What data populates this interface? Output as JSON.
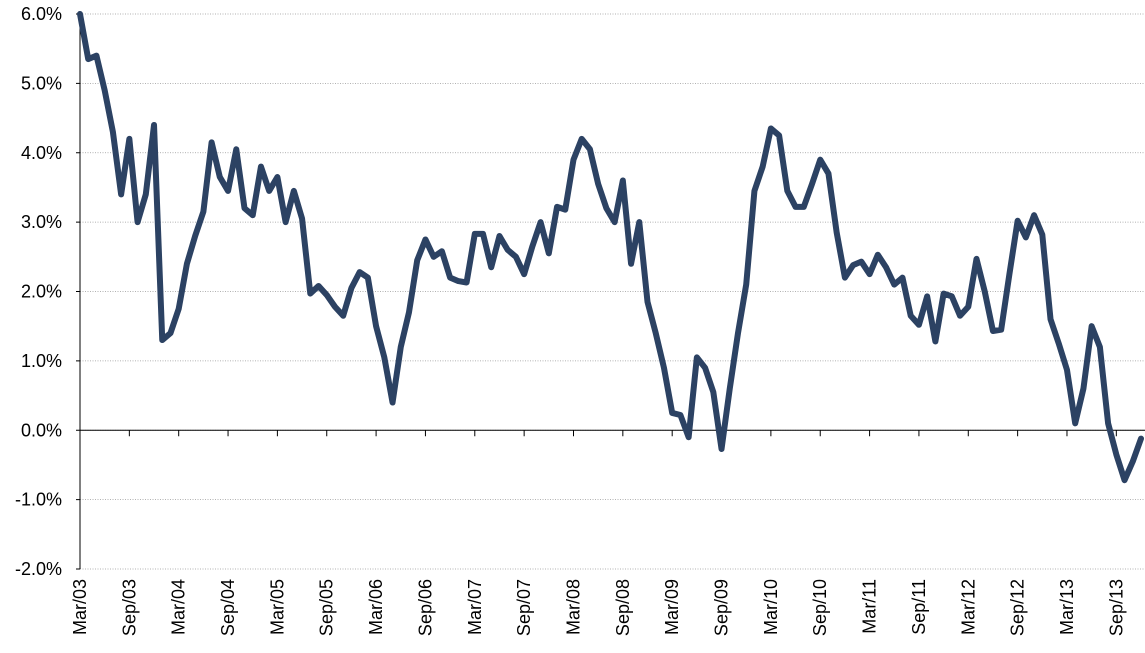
{
  "chart_data": {
    "type": "line",
    "categories": [
      "Mar/03",
      null,
      null,
      null,
      null,
      null,
      "Sep/03",
      null,
      null,
      null,
      null,
      null,
      "Mar/04",
      null,
      null,
      null,
      null,
      null,
      "Sep/04",
      null,
      null,
      null,
      null,
      null,
      "Mar/05",
      null,
      null,
      null,
      null,
      null,
      "Sep/05",
      null,
      null,
      null,
      null,
      null,
      "Mar/06",
      null,
      null,
      null,
      null,
      null,
      "Sep/06",
      null,
      null,
      null,
      null,
      null,
      "Mar/07",
      null,
      null,
      null,
      null,
      null,
      "Sep/07",
      null,
      null,
      null,
      null,
      null,
      "Mar/08",
      null,
      null,
      null,
      null,
      null,
      "Sep/08",
      null,
      null,
      null,
      null,
      null,
      "Mar/09",
      null,
      null,
      null,
      null,
      null,
      "Sep/09",
      null,
      null,
      null,
      null,
      null,
      "Mar/10",
      null,
      null,
      null,
      null,
      null,
      "Sep/10",
      null,
      null,
      null,
      null,
      null,
      "Mar/11",
      null,
      null,
      null,
      null,
      null,
      "Sep/11",
      null,
      null,
      null,
      null,
      null,
      "Mar/12",
      null,
      null,
      null,
      null,
      null,
      "Sep/12",
      null,
      null,
      null,
      null,
      null,
      "Mar/13",
      null,
      null,
      null,
      null,
      null,
      "Sep/13",
      null,
      null,
      null
    ],
    "values": [
      6.0,
      5.35,
      5.4,
      4.9,
      4.3,
      3.4,
      4.2,
      3.0,
      3.4,
      4.4,
      1.3,
      1.4,
      1.75,
      2.4,
      2.8,
      3.15,
      4.15,
      3.65,
      3.45,
      4.05,
      3.2,
      3.1,
      3.8,
      3.45,
      3.65,
      3.0,
      3.45,
      3.05,
      1.97,
      2.08,
      1.95,
      1.78,
      1.65,
      2.05,
      2.28,
      2.2,
      1.5,
      1.05,
      0.4,
      1.2,
      1.7,
      2.45,
      2.75,
      2.5,
      2.58,
      2.2,
      2.15,
      2.13,
      2.83,
      2.83,
      2.35,
      2.8,
      2.6,
      2.5,
      2.25,
      2.65,
      3.0,
      2.55,
      3.22,
      3.18,
      3.9,
      4.2,
      4.05,
      3.55,
      3.2,
      3.0,
      3.6,
      2.4,
      3.0,
      1.85,
      1.4,
      0.9,
      0.25,
      0.22,
      -0.1,
      1.05,
      0.9,
      0.55,
      -0.27,
      0.6,
      1.4,
      2.1,
      3.45,
      3.8,
      4.35,
      4.25,
      3.45,
      3.22,
      3.22,
      3.55,
      3.9,
      3.7,
      2.85,
      2.2,
      2.38,
      2.43,
      2.25,
      2.53,
      2.35,
      2.1,
      2.2,
      1.65,
      1.52,
      1.93,
      1.28,
      1.97,
      1.93,
      1.65,
      1.78,
      2.47,
      2.0,
      1.43,
      1.45,
      2.25,
      3.02,
      2.78,
      3.1,
      2.82,
      1.6,
      1.25,
      0.87,
      0.1,
      0.6,
      1.5,
      1.2,
      0.1,
      -0.35,
      -0.72,
      -0.45,
      -0.12
    ],
    "color": "#2c4263",
    "ylim": [
      -2,
      6
    ],
    "yticks": [
      {
        "value": -2,
        "label": "-2.0%"
      },
      {
        "value": -1,
        "label": "-1.0%"
      },
      {
        "value": 0,
        "label": "0.0%"
      },
      {
        "value": 1,
        "label": "1.0%"
      },
      {
        "value": 2,
        "label": "2.0%"
      },
      {
        "value": 3,
        "label": "3.0%"
      },
      {
        "value": 4,
        "label": "4.0%"
      },
      {
        "value": 5,
        "label": "5.0%"
      },
      {
        "value": 6,
        "label": "6.0%"
      }
    ],
    "grid": true
  }
}
